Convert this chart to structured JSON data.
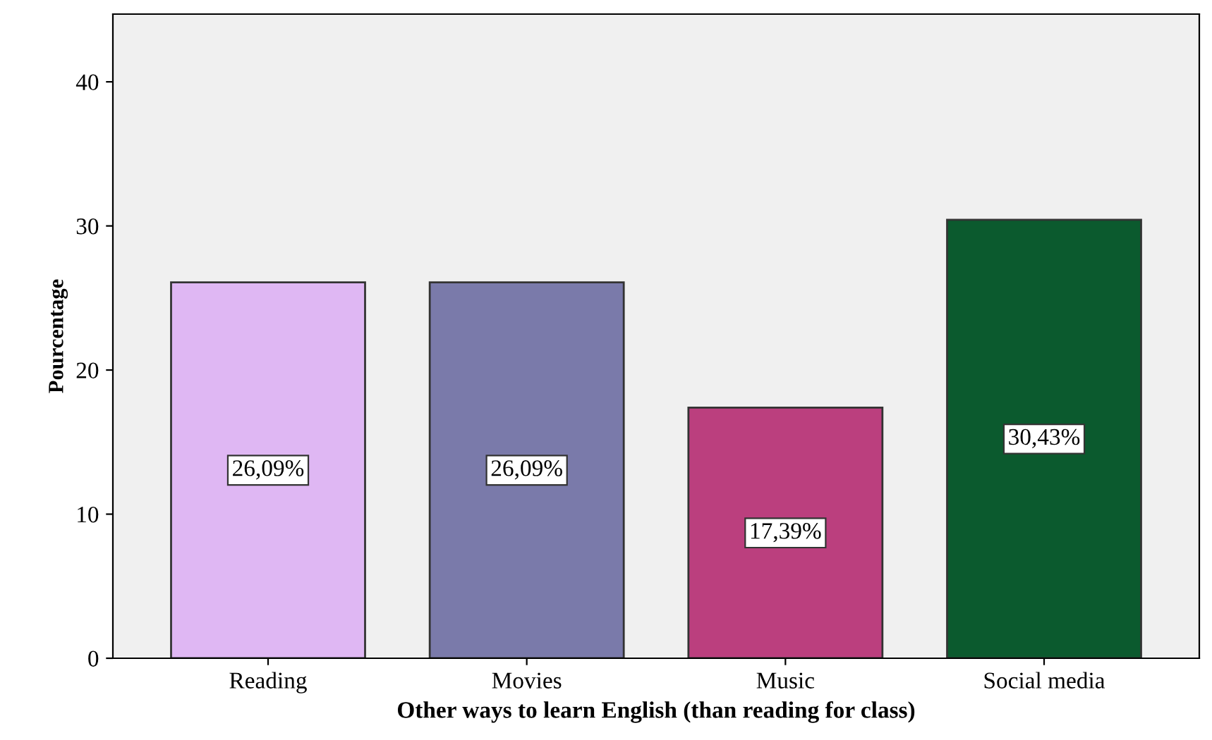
{
  "chart_data": {
    "type": "bar",
    "xlabel": "Other ways to learn English (than reading for class)",
    "ylabel": "Pourcentage",
    "categories": [
      "Reading",
      "Movies",
      "Music",
      "Social media"
    ],
    "values": [
      26.09,
      26.09,
      17.39,
      30.43
    ],
    "value_labels": [
      "26,09%",
      "26,09%",
      "17,39%",
      "30,43%"
    ],
    "colors": [
      "#dfb7f3",
      "#7a7aaa",
      "#bb3f7e",
      "#0b5a2e"
    ],
    "ylim": [
      0,
      44.7
    ],
    "yticks": [
      0,
      10,
      20,
      30,
      40
    ],
    "grid": false
  }
}
